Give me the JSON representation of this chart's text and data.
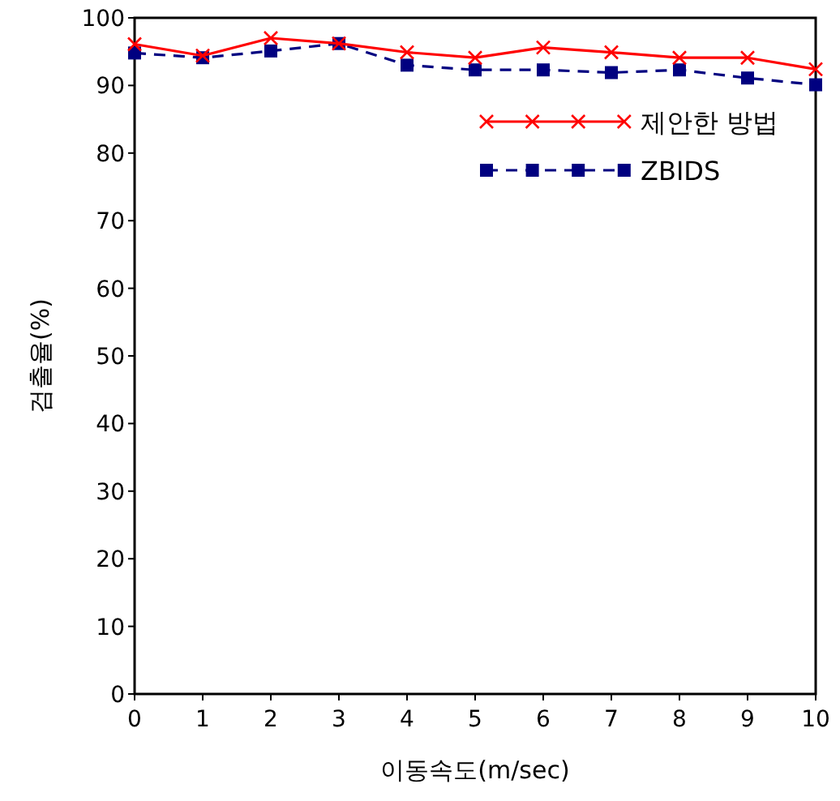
{
  "chart_data": {
    "type": "line",
    "xlabel": "이동속도(m/sec)",
    "ylabel": "검출율(%)",
    "x": [
      0,
      1,
      2,
      3,
      4,
      5,
      6,
      7,
      8,
      9,
      10
    ],
    "xlim": [
      0,
      10
    ],
    "xticks": [
      0,
      1,
      2,
      3,
      4,
      5,
      6,
      7,
      8,
      9,
      10
    ],
    "ylim": [
      0,
      100
    ],
    "yticks": [
      0,
      10,
      20,
      30,
      40,
      50,
      60,
      70,
      80,
      90,
      100
    ],
    "legend": "top right",
    "grid": false,
    "series": [
      {
        "name": "제안한 방법",
        "color": "#ff0000",
        "marker": "cross",
        "line_style": "solid",
        "values": [
          96.1,
          94.4,
          97.0,
          96.2,
          94.9,
          94.1,
          95.6,
          94.9,
          94.1,
          94.1,
          92.4
        ]
      },
      {
        "name": "ZBIDS",
        "color": "#000080",
        "marker": "square",
        "line_style": "dashed",
        "values": [
          94.8,
          94.1,
          95.1,
          96.2,
          93.0,
          92.3,
          92.3,
          91.9,
          92.3,
          91.1,
          90.1
        ]
      }
    ]
  }
}
